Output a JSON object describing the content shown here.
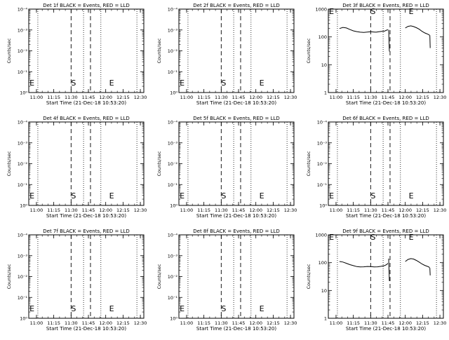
{
  "colors": {
    "background": "#ffffff",
    "ink": "#000000"
  },
  "chart_data": [
    {
      "type": "line",
      "title": "Det 1f BLACK = Events, RED = LLD",
      "xlabel": "Start Time (21-Dec-18 10:53:20)",
      "ylabel": "Counts/sec",
      "x_ticks": [
        "11:00",
        "11:15",
        "11:30",
        "11:45",
        "12:00",
        "12:15",
        "12:30"
      ],
      "y_scale": "log",
      "y_ticks": [
        "10⁰",
        "10⁻¹",
        "10⁻²",
        "10⁻³",
        "10⁻⁴"
      ],
      "marker_labels": [
        "E",
        "S",
        "E"
      ],
      "series": []
    },
    {
      "type": "line",
      "title": "Det 2f BLACK = Events, RED = LLD",
      "xlabel": "Start Time (21-Dec-18 10:53:20)",
      "ylabel": "Counts/sec",
      "x_ticks": [
        "11:00",
        "11:15",
        "11:30",
        "11:45",
        "12:00",
        "12:15",
        "12:30"
      ],
      "y_scale": "log",
      "y_ticks": [
        "10⁰",
        "10⁻¹",
        "10⁻²",
        "10⁻³",
        "10⁻⁴"
      ],
      "marker_labels": [
        "E",
        "S",
        "E"
      ],
      "series": []
    },
    {
      "type": "line",
      "title": "Det 3f BLACK = Events, RED = LLD",
      "xlabel": "Start Time (21-Dec-18 10:53:20)",
      "ylabel": "Counts/sec",
      "x_ticks": [
        "11:00",
        "11:15",
        "11:30",
        "11:45",
        "12:00",
        "12:15",
        "12:30"
      ],
      "y_scale": "log",
      "y_ticks": [
        "1",
        "10",
        "100",
        "1000"
      ],
      "marker_labels": [
        "E",
        "S",
        "E"
      ],
      "series": [
        {
          "points": [
            [
              11.05,
              200
            ],
            [
              11.1,
              220
            ],
            [
              11.15,
              210
            ],
            [
              11.2,
              185
            ],
            [
              11.25,
              165
            ],
            [
              11.3,
              155
            ],
            [
              11.35,
              148
            ],
            [
              11.4,
              145
            ],
            [
              11.45,
              150
            ],
            [
              11.5,
              153
            ],
            [
              11.55,
              150
            ],
            [
              11.58,
              148
            ],
            [
              11.62,
              153
            ],
            [
              11.66,
              158
            ],
            [
              11.7,
              162
            ],
            [
              11.73,
              175
            ],
            [
              11.75,
              180
            ]
          ]
        },
        {
          "points": [
            [
              11.76,
              180
            ],
            [
              11.77,
              30
            ]
          ]
        },
        {
          "points": [
            [
              12.0,
              210
            ],
            [
              12.04,
              240
            ],
            [
              12.08,
              250
            ],
            [
              12.12,
              235
            ],
            [
              12.16,
              215
            ],
            [
              12.2,
              190
            ],
            [
              12.24,
              160
            ],
            [
              12.28,
              140
            ],
            [
              12.31,
              130
            ],
            [
              12.34,
              120
            ],
            [
              12.35,
              115
            ]
          ]
        },
        {
          "points": [
            [
              12.355,
              115
            ],
            [
              12.36,
              40
            ]
          ]
        }
      ]
    },
    {
      "type": "line",
      "title": "Det 4f BLACK = Events, RED = LLD",
      "xlabel": "Start Time (21-Dec-18 10:53:20)",
      "ylabel": "Counts/sec",
      "x_ticks": [
        "11:00",
        "11:15",
        "11:30",
        "11:45",
        "12:00",
        "12:15",
        "12:30"
      ],
      "y_scale": "log",
      "y_ticks": [
        "10⁰",
        "10⁻¹",
        "10⁻²",
        "10⁻³",
        "10⁻⁴"
      ],
      "marker_labels": [
        "E",
        "S",
        "E"
      ],
      "series": []
    },
    {
      "type": "line",
      "title": "Det 5f BLACK = Events, RED = LLD",
      "xlabel": "Start Time (21-Dec-18 10:53:20)",
      "ylabel": "Counts/sec",
      "x_ticks": [
        "11:00",
        "11:15",
        "11:30",
        "11:45",
        "12:00",
        "12:15",
        "12:30"
      ],
      "y_scale": "log",
      "y_ticks": [
        "10⁰",
        "10⁻¹",
        "10⁻²",
        "10⁻³",
        "10⁻⁴"
      ],
      "marker_labels": [
        "E",
        "S",
        "E"
      ],
      "series": []
    },
    {
      "type": "line",
      "title": "Det 6f BLACK = Events, RED = LLD",
      "xlabel": "Start Time (21-Dec-18 10:53:20)",
      "ylabel": "Counts/sec",
      "x_ticks": [
        "11:00",
        "11:15",
        "11:30",
        "11:45",
        "12:00",
        "12:15",
        "12:30"
      ],
      "y_scale": "log",
      "y_ticks": [
        "10⁰",
        "10⁻¹",
        "10⁻²",
        "10⁻³",
        "10⁻⁴"
      ],
      "marker_labels": [
        "E",
        "S",
        "E"
      ],
      "series": []
    },
    {
      "type": "line",
      "title": "Det 7f BLACK = Events, RED = LLD",
      "xlabel": "Start Time (21-Dec-18 10:53:20)",
      "ylabel": "Counts/sec",
      "x_ticks": [
        "11:00",
        "11:15",
        "11:30",
        "11:45",
        "12:00",
        "12:15",
        "12:30"
      ],
      "y_scale": "log",
      "y_ticks": [
        "10⁰",
        "10⁻¹",
        "10⁻²",
        "10⁻³",
        "10⁻⁴"
      ],
      "marker_labels": [
        "E",
        "S",
        "E"
      ],
      "series": []
    },
    {
      "type": "line",
      "title": "Det 8f BLACK = Events, RED = LLD",
      "xlabel": "Start Time (21-Dec-18 10:53:20)",
      "ylabel": "Counts/sec",
      "x_ticks": [
        "11:00",
        "11:15",
        "11:30",
        "11:45",
        "12:00",
        "12:15",
        "12:30"
      ],
      "y_scale": "log",
      "y_ticks": [
        "10⁰",
        "10⁻¹",
        "10⁻²",
        "10⁻³",
        "10⁻⁴"
      ],
      "marker_labels": [
        "E",
        "S",
        "E"
      ],
      "series": []
    },
    {
      "type": "line",
      "title": "Det 9f BLACK = Events, RED = LLD",
      "xlabel": "Start Time (21-Dec-18 10:53:20)",
      "ylabel": "Counts/sec",
      "x_ticks": [
        "11:00",
        "11:15",
        "11:30",
        "11:45",
        "12:00",
        "12:15",
        "12:30"
      ],
      "y_scale": "log",
      "y_ticks": [
        "1",
        "10",
        "100",
        "1000"
      ],
      "marker_labels": [
        "E",
        "S",
        "E"
      ],
      "series": [
        {
          "points": [
            [
              11.05,
              110
            ],
            [
              11.1,
              105
            ],
            [
              11.15,
              95
            ],
            [
              11.2,
              85
            ],
            [
              11.25,
              78
            ],
            [
              11.3,
              72
            ],
            [
              11.35,
              70
            ],
            [
              11.4,
              71
            ],
            [
              11.45,
              73
            ],
            [
              11.5,
              72
            ],
            [
              11.55,
              70
            ],
            [
              11.6,
              71
            ],
            [
              11.65,
              74
            ],
            [
              11.7,
              78
            ],
            [
              11.73,
              85
            ],
            [
              11.75,
              95
            ]
          ]
        },
        {
          "points": [
            [
              11.76,
              140
            ],
            [
              11.77,
              22
            ]
          ]
        },
        {
          "points": [
            [
              12.0,
              110
            ],
            [
              12.04,
              130
            ],
            [
              12.08,
              140
            ],
            [
              12.12,
              135
            ],
            [
              12.16,
              120
            ],
            [
              12.2,
              105
            ],
            [
              12.24,
              90
            ],
            [
              12.28,
              80
            ],
            [
              12.31,
              75
            ],
            [
              12.34,
              70
            ],
            [
              12.35,
              65
            ]
          ]
        },
        {
          "points": [
            [
              12.355,
              65
            ],
            [
              12.36,
              35
            ]
          ]
        }
      ]
    }
  ]
}
